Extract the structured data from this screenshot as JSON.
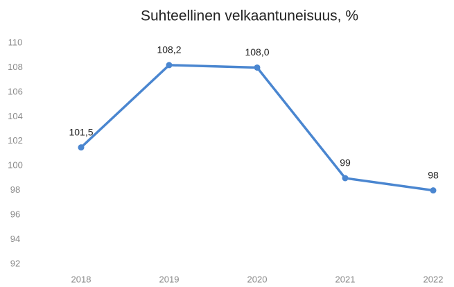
{
  "chart_data": {
    "type": "line",
    "title": "Suhteellinen velkaantuneisuus, %",
    "categories": [
      "2018",
      "2019",
      "2020",
      "2021",
      "2022"
    ],
    "series": [
      {
        "name": "Suhteellinen velkaantuneisuus",
        "color": "#4a86d0",
        "values": [
          101.5,
          108.2,
          108.0,
          99,
          98
        ],
        "value_labels": [
          "101,5",
          "108,2",
          "108,0",
          "99",
          "98"
        ]
      }
    ],
    "ylim": [
      92,
      110
    ],
    "yticks": [
      92,
      94,
      96,
      98,
      100,
      102,
      104,
      106,
      108,
      110
    ],
    "grid": false
  }
}
